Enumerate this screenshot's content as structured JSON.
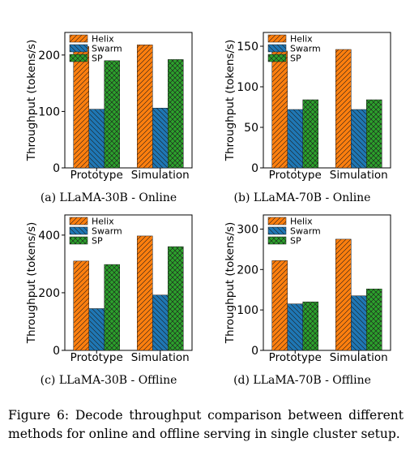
{
  "series_colors": {
    "Helix": "#ff7f0e",
    "Swarm": "#1f77b4",
    "SP": "#2ca02c"
  },
  "series_hatches": {
    "Helix": "diagonal",
    "Swarm": "backslash",
    "SP": "crosshatch"
  },
  "legend_placement": "top-left",
  "chart_data": [
    {
      "type": "bar",
      "subcaption": "(a) LLaMA-30B - Online",
      "ylabel": "Throughput (tokens/s)",
      "categories": [
        "Prototype",
        "Simulation"
      ],
      "ylim": [
        0,
        240
      ],
      "yticks": [
        0,
        100,
        200
      ],
      "grid": false,
      "legend_placement": "top-left",
      "series": [
        {
          "name": "Helix",
          "values": [
            215,
            218
          ]
        },
        {
          "name": "Swarm",
          "values": [
            104,
            106
          ]
        },
        {
          "name": "SP",
          "values": [
            190,
            192
          ]
        }
      ]
    },
    {
      "type": "bar",
      "subcaption": "(b) LLaMA-70B - Online",
      "ylabel": "Throughput (tokens/s)",
      "categories": [
        "Prototype",
        "Simulation"
      ],
      "ylim": [
        0,
        167
      ],
      "yticks": [
        0,
        50,
        100,
        150
      ],
      "grid": false,
      "legend_placement": "top-left",
      "series": [
        {
          "name": "Helix",
          "values": [
            144,
            146
          ]
        },
        {
          "name": "Swarm",
          "values": [
            72,
            72
          ]
        },
        {
          "name": "SP",
          "values": [
            84,
            84
          ]
        }
      ]
    },
    {
      "type": "bar",
      "subcaption": "(c) LLaMA-30B - Offline",
      "ylabel": "Throughput (tokens/s)",
      "categories": [
        "Prototype",
        "Simulation"
      ],
      "ylim": [
        0,
        470
      ],
      "yticks": [
        0,
        200,
        400
      ],
      "grid": false,
      "legend_placement": "top-left",
      "series": [
        {
          "name": "Helix",
          "values": [
            310,
            397
          ]
        },
        {
          "name": "Swarm",
          "values": [
            145,
            192
          ]
        },
        {
          "name": "SP",
          "values": [
            298,
            360
          ]
        }
      ]
    },
    {
      "type": "bar",
      "subcaption": "(d) LLaMA-70B - Offline",
      "ylabel": "Throughput (tokens/s)",
      "categories": [
        "Prototype",
        "Simulation"
      ],
      "ylim": [
        0,
        335
      ],
      "yticks": [
        0,
        100,
        200,
        300
      ],
      "grid": false,
      "legend_placement": "top-left",
      "series": [
        {
          "name": "Helix",
          "values": [
            222,
            275
          ]
        },
        {
          "name": "Swarm",
          "values": [
            115,
            135
          ]
        },
        {
          "name": "SP",
          "values": [
            120,
            152
          ]
        }
      ]
    }
  ],
  "caption": "Figure 6: Decode throughput comparison between different methods for online and offline serving in single cluster setup."
}
